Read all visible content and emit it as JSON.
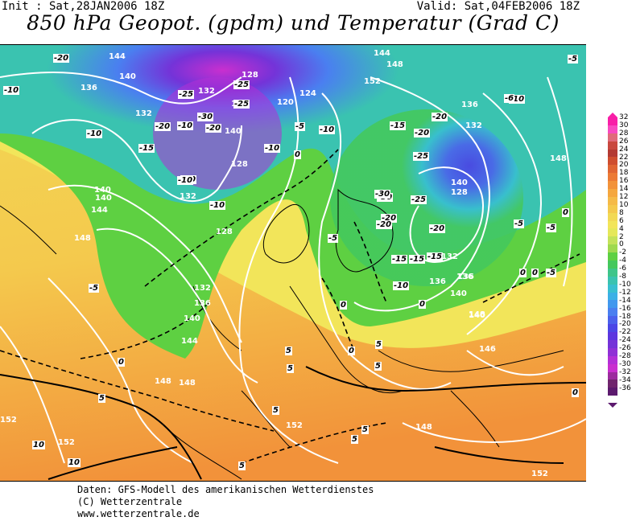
{
  "header": {
    "init": "Init : Sat,28JAN2006 18Z",
    "valid": "Valid: Sat,04FEB2006 18Z",
    "title": "850 hPa Geopot. (gpdm) und Temperatur (Grad C)"
  },
  "colors": {
    "map_line": "#000000",
    "isohypse": "#ffffff",
    "isotherm_dashed": "#000000"
  },
  "geopotential_labels": [
    "144",
    "140",
    "136",
    "132",
    "136",
    "132",
    "140",
    "128",
    "124",
    "120",
    "128",
    "132",
    "140",
    "128",
    "132",
    "136",
    "140",
    "136",
    "148",
    "152",
    "144",
    "148",
    "152",
    "148",
    "144",
    "136",
    "132",
    "128",
    "140",
    "136",
    "140",
    "144",
    "148",
    "148",
    "152",
    "152",
    "132",
    "140",
    "148",
    "146",
    "140",
    "136",
    "148",
    "152"
  ],
  "temperature_labels": [
    "-20",
    "-10",
    "-15",
    "-20",
    "-25",
    "-30",
    "-25",
    "-20",
    "-10",
    "-10",
    "-5",
    "-10",
    "-15",
    "-20",
    "-25",
    "-30",
    "-25",
    "-20",
    "-20",
    "-15",
    "-15",
    "-10",
    "-10",
    "-5",
    "-5",
    "0",
    "-5",
    "-10",
    "-10",
    "-5",
    "-10",
    "0",
    "0",
    "0",
    "-5",
    "5",
    "0",
    "5",
    "5",
    "5",
    "5",
    "5",
    "10",
    "10",
    "5",
    "0",
    "5",
    "-20",
    "-20",
    "-25",
    "-30",
    "-10",
    "-6",
    "5",
    "-5",
    "-15",
    "0",
    "0",
    "0"
  ],
  "legend": {
    "values": [
      "32",
      "30",
      "28",
      "26",
      "24",
      "22",
      "20",
      "18",
      "16",
      "14",
      "12",
      "10",
      "8",
      "6",
      "4",
      "2",
      "0",
      "-2",
      "-4",
      "-6",
      "-8",
      "-10",
      "-12",
      "-14",
      "-16",
      "-18",
      "-20",
      "-22",
      "-24",
      "-26",
      "-28",
      "-30",
      "-32",
      "-34",
      "-36"
    ],
    "colors": [
      "#f81fa7",
      "#f84ac0",
      "#e06a7a",
      "#c9483f",
      "#b33a33",
      "#cf4e2f",
      "#e06533",
      "#ec7a35",
      "#f2923a",
      "#f5a73f",
      "#f5ba48",
      "#f4c94d",
      "#f2d955",
      "#f2e55a",
      "#e5e85a",
      "#c4e25a",
      "#9fd94f",
      "#5ed042",
      "#44c85d",
      "#3ec58a",
      "#3ac3b0",
      "#38bfd0",
      "#3bb0e6",
      "#4198ee",
      "#4a7ff0",
      "#4b61ec",
      "#4b46e6",
      "#5c36df",
      "#7433d8",
      "#9030d6",
      "#b32fd6",
      "#c92fcf",
      "#9c2b9e",
      "#70256d",
      "#5c1a6e"
    ]
  },
  "footer": {
    "line1": "Daten: GFS-Modell des amerikanischen Wetterdienstes",
    "line2": "(C) Wetterzentrale",
    "line3": "www.wetterzentrale.de"
  }
}
